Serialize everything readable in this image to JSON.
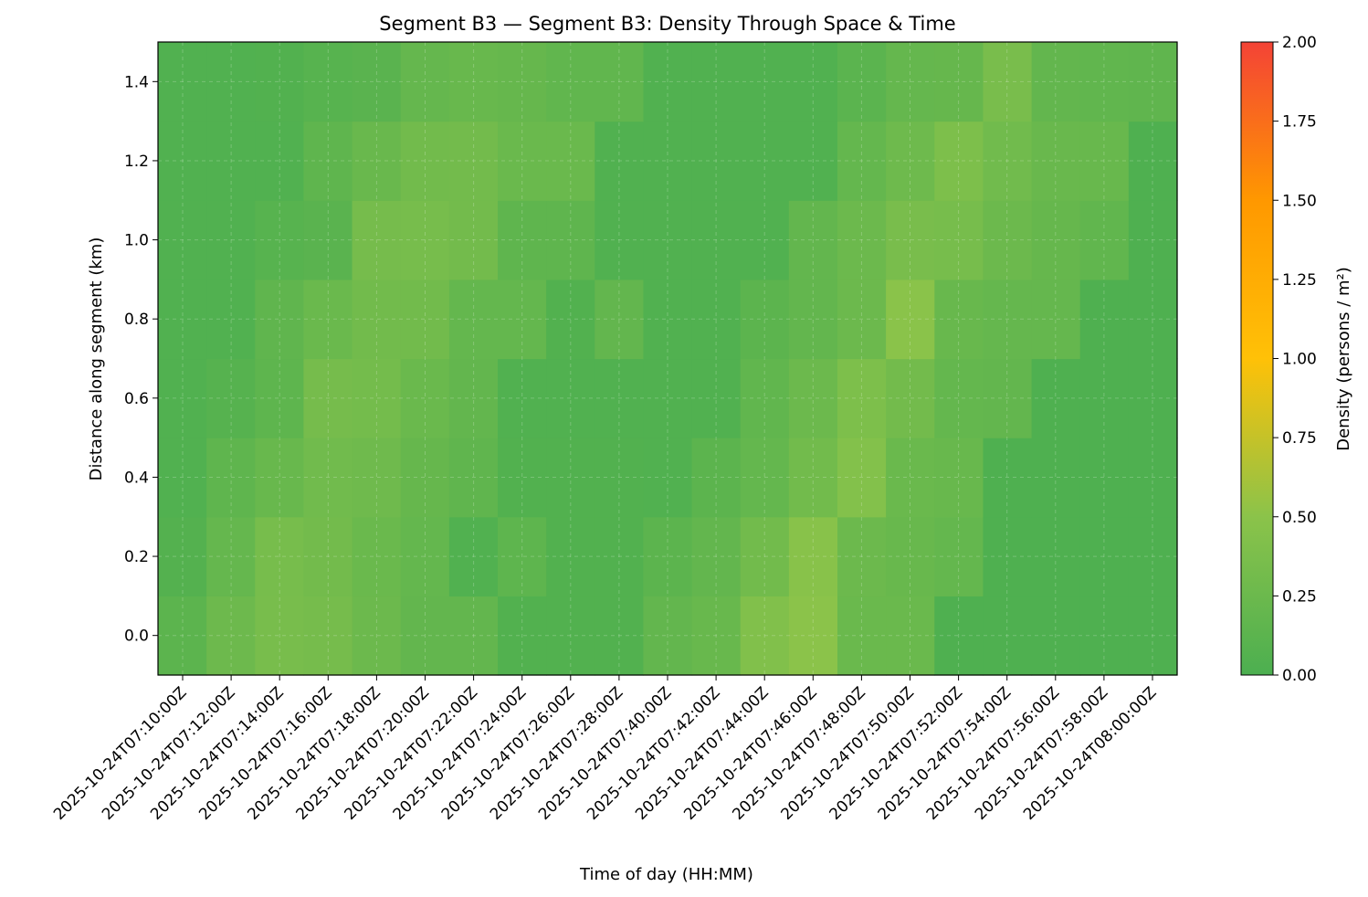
{
  "chart_data": {
    "type": "heatmap",
    "title": "Segment B3 — Segment B3: Density Through Space & Time",
    "xlabel": "Time of day (HH:MM)",
    "ylabel": "Distance along segment (km)",
    "x": [
      "2025-10-24T07:10:00Z",
      "2025-10-24T07:12:00Z",
      "2025-10-24T07:14:00Z",
      "2025-10-24T07:16:00Z",
      "2025-10-24T07:18:00Z",
      "2025-10-24T07:20:00Z",
      "2025-10-24T07:22:00Z",
      "2025-10-24T07:24:00Z",
      "2025-10-24T07:26:00Z",
      "2025-10-24T07:28:00Z",
      "2025-10-24T07:40:00Z",
      "2025-10-24T07:42:00Z",
      "2025-10-24T07:44:00Z",
      "2025-10-24T07:46:00Z",
      "2025-10-24T07:48:00Z",
      "2025-10-24T07:50:00Z",
      "2025-10-24T07:52:00Z",
      "2025-10-24T07:54:00Z",
      "2025-10-24T07:56:00Z",
      "2025-10-24T07:58:00Z",
      "2025-10-24T08:00:00Z"
    ],
    "y": [
      0.0,
      0.2,
      0.4,
      0.6,
      0.8,
      1.0,
      1.2,
      1.4
    ],
    "values": [
      [
        0.13,
        0.26,
        0.35,
        0.33,
        0.25,
        0.18,
        0.18,
        0.05,
        0.05,
        0.05,
        0.18,
        0.22,
        0.42,
        0.5,
        0.24,
        0.24,
        0.02,
        0.02,
        0.02,
        0.02,
        0.02
      ],
      [
        0.06,
        0.2,
        0.34,
        0.31,
        0.24,
        0.19,
        0.04,
        0.14,
        0.05,
        0.05,
        0.13,
        0.18,
        0.3,
        0.48,
        0.25,
        0.22,
        0.19,
        0.02,
        0.02,
        0.02,
        0.02
      ],
      [
        0.04,
        0.15,
        0.22,
        0.29,
        0.28,
        0.21,
        0.16,
        0.05,
        0.05,
        0.05,
        0.04,
        0.13,
        0.19,
        0.3,
        0.44,
        0.24,
        0.22,
        0.02,
        0.02,
        0.02,
        0.02
      ],
      [
        0.04,
        0.08,
        0.14,
        0.33,
        0.32,
        0.24,
        0.18,
        0.04,
        0.04,
        0.04,
        0.04,
        0.04,
        0.17,
        0.25,
        0.39,
        0.31,
        0.19,
        0.18,
        0.02,
        0.02,
        0.02
      ],
      [
        0.04,
        0.04,
        0.16,
        0.24,
        0.3,
        0.3,
        0.19,
        0.19,
        0.05,
        0.18,
        0.04,
        0.04,
        0.13,
        0.18,
        0.25,
        0.49,
        0.22,
        0.2,
        0.2,
        0.02,
        0.02
      ],
      [
        0.04,
        0.04,
        0.09,
        0.11,
        0.33,
        0.34,
        0.31,
        0.15,
        0.15,
        0.04,
        0.04,
        0.04,
        0.04,
        0.18,
        0.25,
        0.36,
        0.34,
        0.25,
        0.21,
        0.17,
        0.02
      ],
      [
        0.04,
        0.04,
        0.04,
        0.15,
        0.23,
        0.3,
        0.31,
        0.24,
        0.24,
        0.04,
        0.04,
        0.04,
        0.04,
        0.04,
        0.19,
        0.27,
        0.39,
        0.29,
        0.23,
        0.22,
        0.02
      ],
      [
        0.04,
        0.04,
        0.05,
        0.09,
        0.11,
        0.2,
        0.22,
        0.21,
        0.17,
        0.17,
        0.04,
        0.04,
        0.04,
        0.04,
        0.12,
        0.2,
        0.21,
        0.36,
        0.18,
        0.17,
        0.16
      ]
    ],
    "yticks": [
      0.0,
      0.2,
      0.4,
      0.6,
      0.8,
      1.0,
      1.2,
      1.4
    ],
    "ylim": [
      -0.1,
      1.5
    ],
    "colorbar": {
      "label": "Density (persons / m²)",
      "range": [
        0,
        2
      ],
      "ticks": [
        "0.00",
        "0.25",
        "0.50",
        "0.75",
        "1.00",
        "1.25",
        "1.50",
        "1.75",
        "2.00"
      ],
      "colors": [
        "#4caf50",
        "#8bc34a",
        "#ffc107",
        "#ff9800",
        "#f44336"
      ]
    },
    "grid": true,
    "grid_style": "dashed, faint"
  }
}
